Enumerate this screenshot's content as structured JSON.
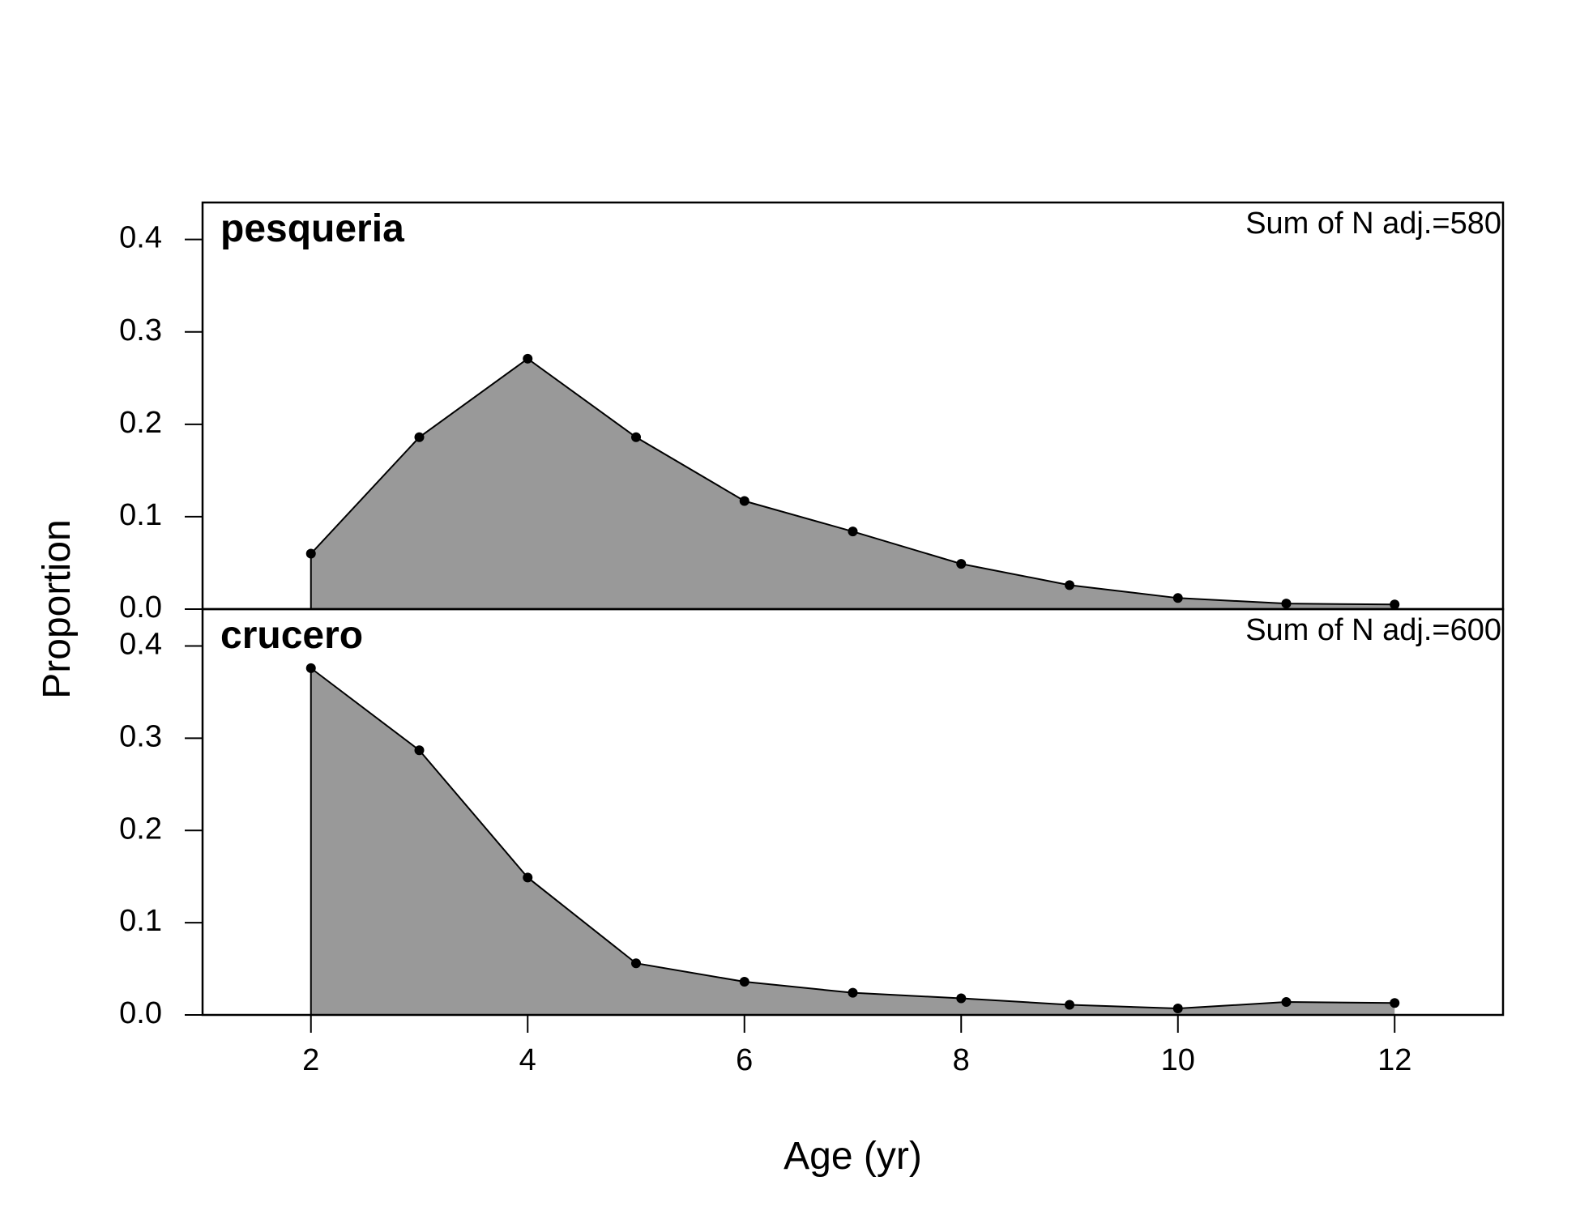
{
  "chart_data": [
    {
      "type": "area",
      "panel_label": "pesqueria",
      "annotation": "Sum of N adj.=580",
      "x": [
        2,
        3,
        4,
        5,
        6,
        7,
        8,
        9,
        10,
        11,
        12
      ],
      "values": [
        0.06,
        0.186,
        0.271,
        0.186,
        0.117,
        0.084,
        0.049,
        0.026,
        0.012,
        0.006,
        0.005
      ],
      "fill_color": "#999999",
      "line_color": "#000000",
      "xlim": [
        1,
        13
      ],
      "ylim": [
        0,
        0.44
      ],
      "yticks": [
        "0.0",
        "0.1",
        "0.2",
        "0.3",
        "0.4"
      ]
    },
    {
      "type": "area",
      "panel_label": "crucero",
      "annotation": "Sum of N adj.=600",
      "x": [
        2,
        3,
        4,
        5,
        6,
        7,
        8,
        9,
        10,
        11,
        12
      ],
      "values": [
        0.376,
        0.287,
        0.149,
        0.056,
        0.036,
        0.024,
        0.018,
        0.011,
        0.007,
        0.014,
        0.013
      ],
      "fill_color": "#999999",
      "line_color": "#000000",
      "xlim": [
        1,
        13
      ],
      "ylim": [
        0,
        0.44
      ],
      "yticks": [
        "0.0",
        "0.1",
        "0.2",
        "0.3",
        "0.4"
      ]
    }
  ],
  "axes": {
    "xlabel": "Age (yr)",
    "ylabel": "Proportion",
    "xticks": [
      "2",
      "4",
      "6",
      "8",
      "10",
      "12"
    ],
    "grid": false
  }
}
